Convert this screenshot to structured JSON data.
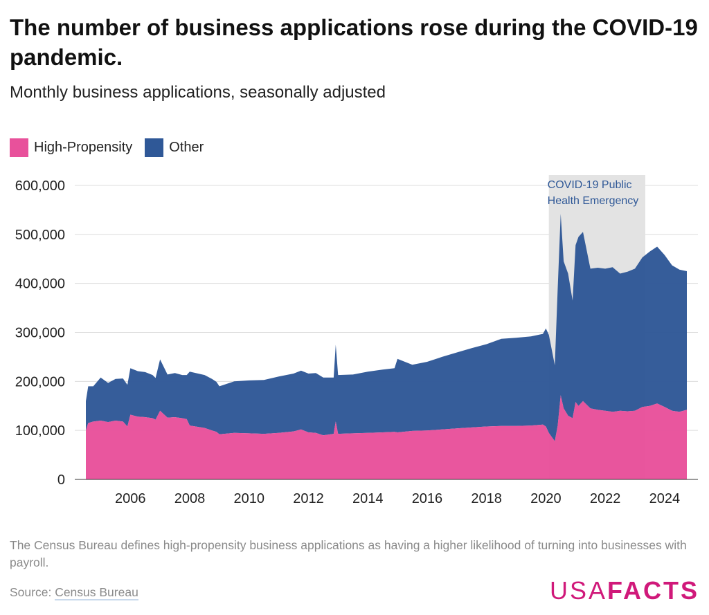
{
  "header": {
    "title": "The number of business applications rose during the COVID-19 pandemic.",
    "subtitle": "Monthly business applications, seasonally adjusted"
  },
  "legend": [
    {
      "label": "High-Propensity",
      "color": "#e8519b"
    },
    {
      "label": "Other",
      "color": "#2f5897"
    }
  ],
  "footer": {
    "note": "The Census Bureau defines high-propensity business applications as having a higher likelihood of turning into businesses with payroll.",
    "source_prefix": "Source:",
    "source_link": "Census Bureau",
    "logo_thin": "USA",
    "logo_bold": "FACTS"
  },
  "chart_data": {
    "type": "area",
    "stacked": true,
    "title": "The number of business applications rose during the COVID-19 pandemic.",
    "subtitle": "Monthly business applications, seasonally adjusted",
    "xlabel": "",
    "ylabel": "",
    "xlim": [
      2004.5,
      2024.75
    ],
    "ylim": [
      0,
      600000
    ],
    "yticks": [
      0,
      100000,
      200000,
      300000,
      400000,
      500000,
      600000
    ],
    "ytick_labels": [
      "0",
      "100,000",
      "200,000",
      "300,000",
      "400,000",
      "500,000",
      "600,000"
    ],
    "xticks": [
      2006,
      2008,
      2010,
      2012,
      2014,
      2016,
      2018,
      2020,
      2022,
      2024
    ],
    "xtick_labels": [
      "2006",
      "2008",
      "2010",
      "2012",
      "2014",
      "2016",
      "2018",
      "2020",
      "2022",
      "2024"
    ],
    "annotation": {
      "label_line1": "COVID-19 Public",
      "label_line2": "Health Emergency",
      "start": 2020.1,
      "end": 2023.35,
      "color": "#e3e3e3"
    },
    "x": [
      2004.5,
      2004.58,
      2004.75,
      2005.0,
      2005.25,
      2005.5,
      2005.75,
      2005.9,
      2006.0,
      2006.25,
      2006.5,
      2006.75,
      2006.85,
      2007.0,
      2007.25,
      2007.5,
      2007.75,
      2007.9,
      2008.0,
      2008.5,
      2008.75,
      2008.9,
      2009.0,
      2009.5,
      2010.0,
      2010.5,
      2011.0,
      2011.5,
      2011.75,
      2012.0,
      2012.25,
      2012.5,
      2012.85,
      2012.92,
      2013.0,
      2013.5,
      2014.0,
      2014.5,
      2014.9,
      2015.0,
      2015.5,
      2016.0,
      2016.5,
      2017.0,
      2017.5,
      2018.0,
      2018.5,
      2019.0,
      2019.5,
      2019.9,
      2020.0,
      2020.1,
      2020.3,
      2020.4,
      2020.5,
      2020.6,
      2020.75,
      2020.9,
      2021.0,
      2021.1,
      2021.25,
      2021.5,
      2021.75,
      2022.0,
      2022.25,
      2022.5,
      2022.75,
      2023.0,
      2023.25,
      2023.5,
      2023.75,
      2024.0,
      2024.25,
      2024.5,
      2024.75
    ],
    "series": [
      {
        "name": "High-Propensity",
        "color": "#e8519b",
        "values": [
          100000,
          115000,
          118000,
          120000,
          117000,
          120000,
          118000,
          108000,
          132000,
          128000,
          127000,
          125000,
          122000,
          140000,
          126000,
          127000,
          125000,
          123000,
          110000,
          105000,
          100000,
          97000,
          92000,
          95000,
          94000,
          93000,
          95000,
          98000,
          102000,
          96000,
          95000,
          90000,
          93000,
          118000,
          93000,
          94000,
          95000,
          96000,
          97000,
          96000,
          99000,
          100000,
          102000,
          104000,
          106000,
          108000,
          109000,
          109000,
          110000,
          112000,
          108000,
          95000,
          78000,
          110000,
          172000,
          145000,
          130000,
          125000,
          158000,
          150000,
          160000,
          145000,
          142000,
          140000,
          138000,
          140000,
          139000,
          140000,
          148000,
          150000,
          155000,
          148000,
          140000,
          138000,
          142000
        ]
      },
      {
        "name": "Other",
        "color": "#2f5897",
        "values": [
          60000,
          75000,
          72000,
          88000,
          80000,
          85000,
          88000,
          85000,
          95000,
          93000,
          92000,
          88000,
          85000,
          105000,
          88000,
          90000,
          88000,
          90000,
          110000,
          108000,
          105000,
          102000,
          98000,
          105000,
          108000,
          110000,
          115000,
          118000,
          120000,
          120000,
          122000,
          118000,
          115000,
          157000,
          120000,
          120000,
          125000,
          128000,
          130000,
          150000,
          135000,
          140000,
          148000,
          155000,
          162000,
          168000,
          178000,
          180000,
          182000,
          185000,
          200000,
          200000,
          155000,
          280000,
          370000,
          300000,
          290000,
          240000,
          320000,
          345000,
          345000,
          285000,
          290000,
          290000,
          295000,
          280000,
          285000,
          290000,
          305000,
          315000,
          320000,
          310000,
          297000,
          290000,
          283000
        ]
      }
    ]
  }
}
